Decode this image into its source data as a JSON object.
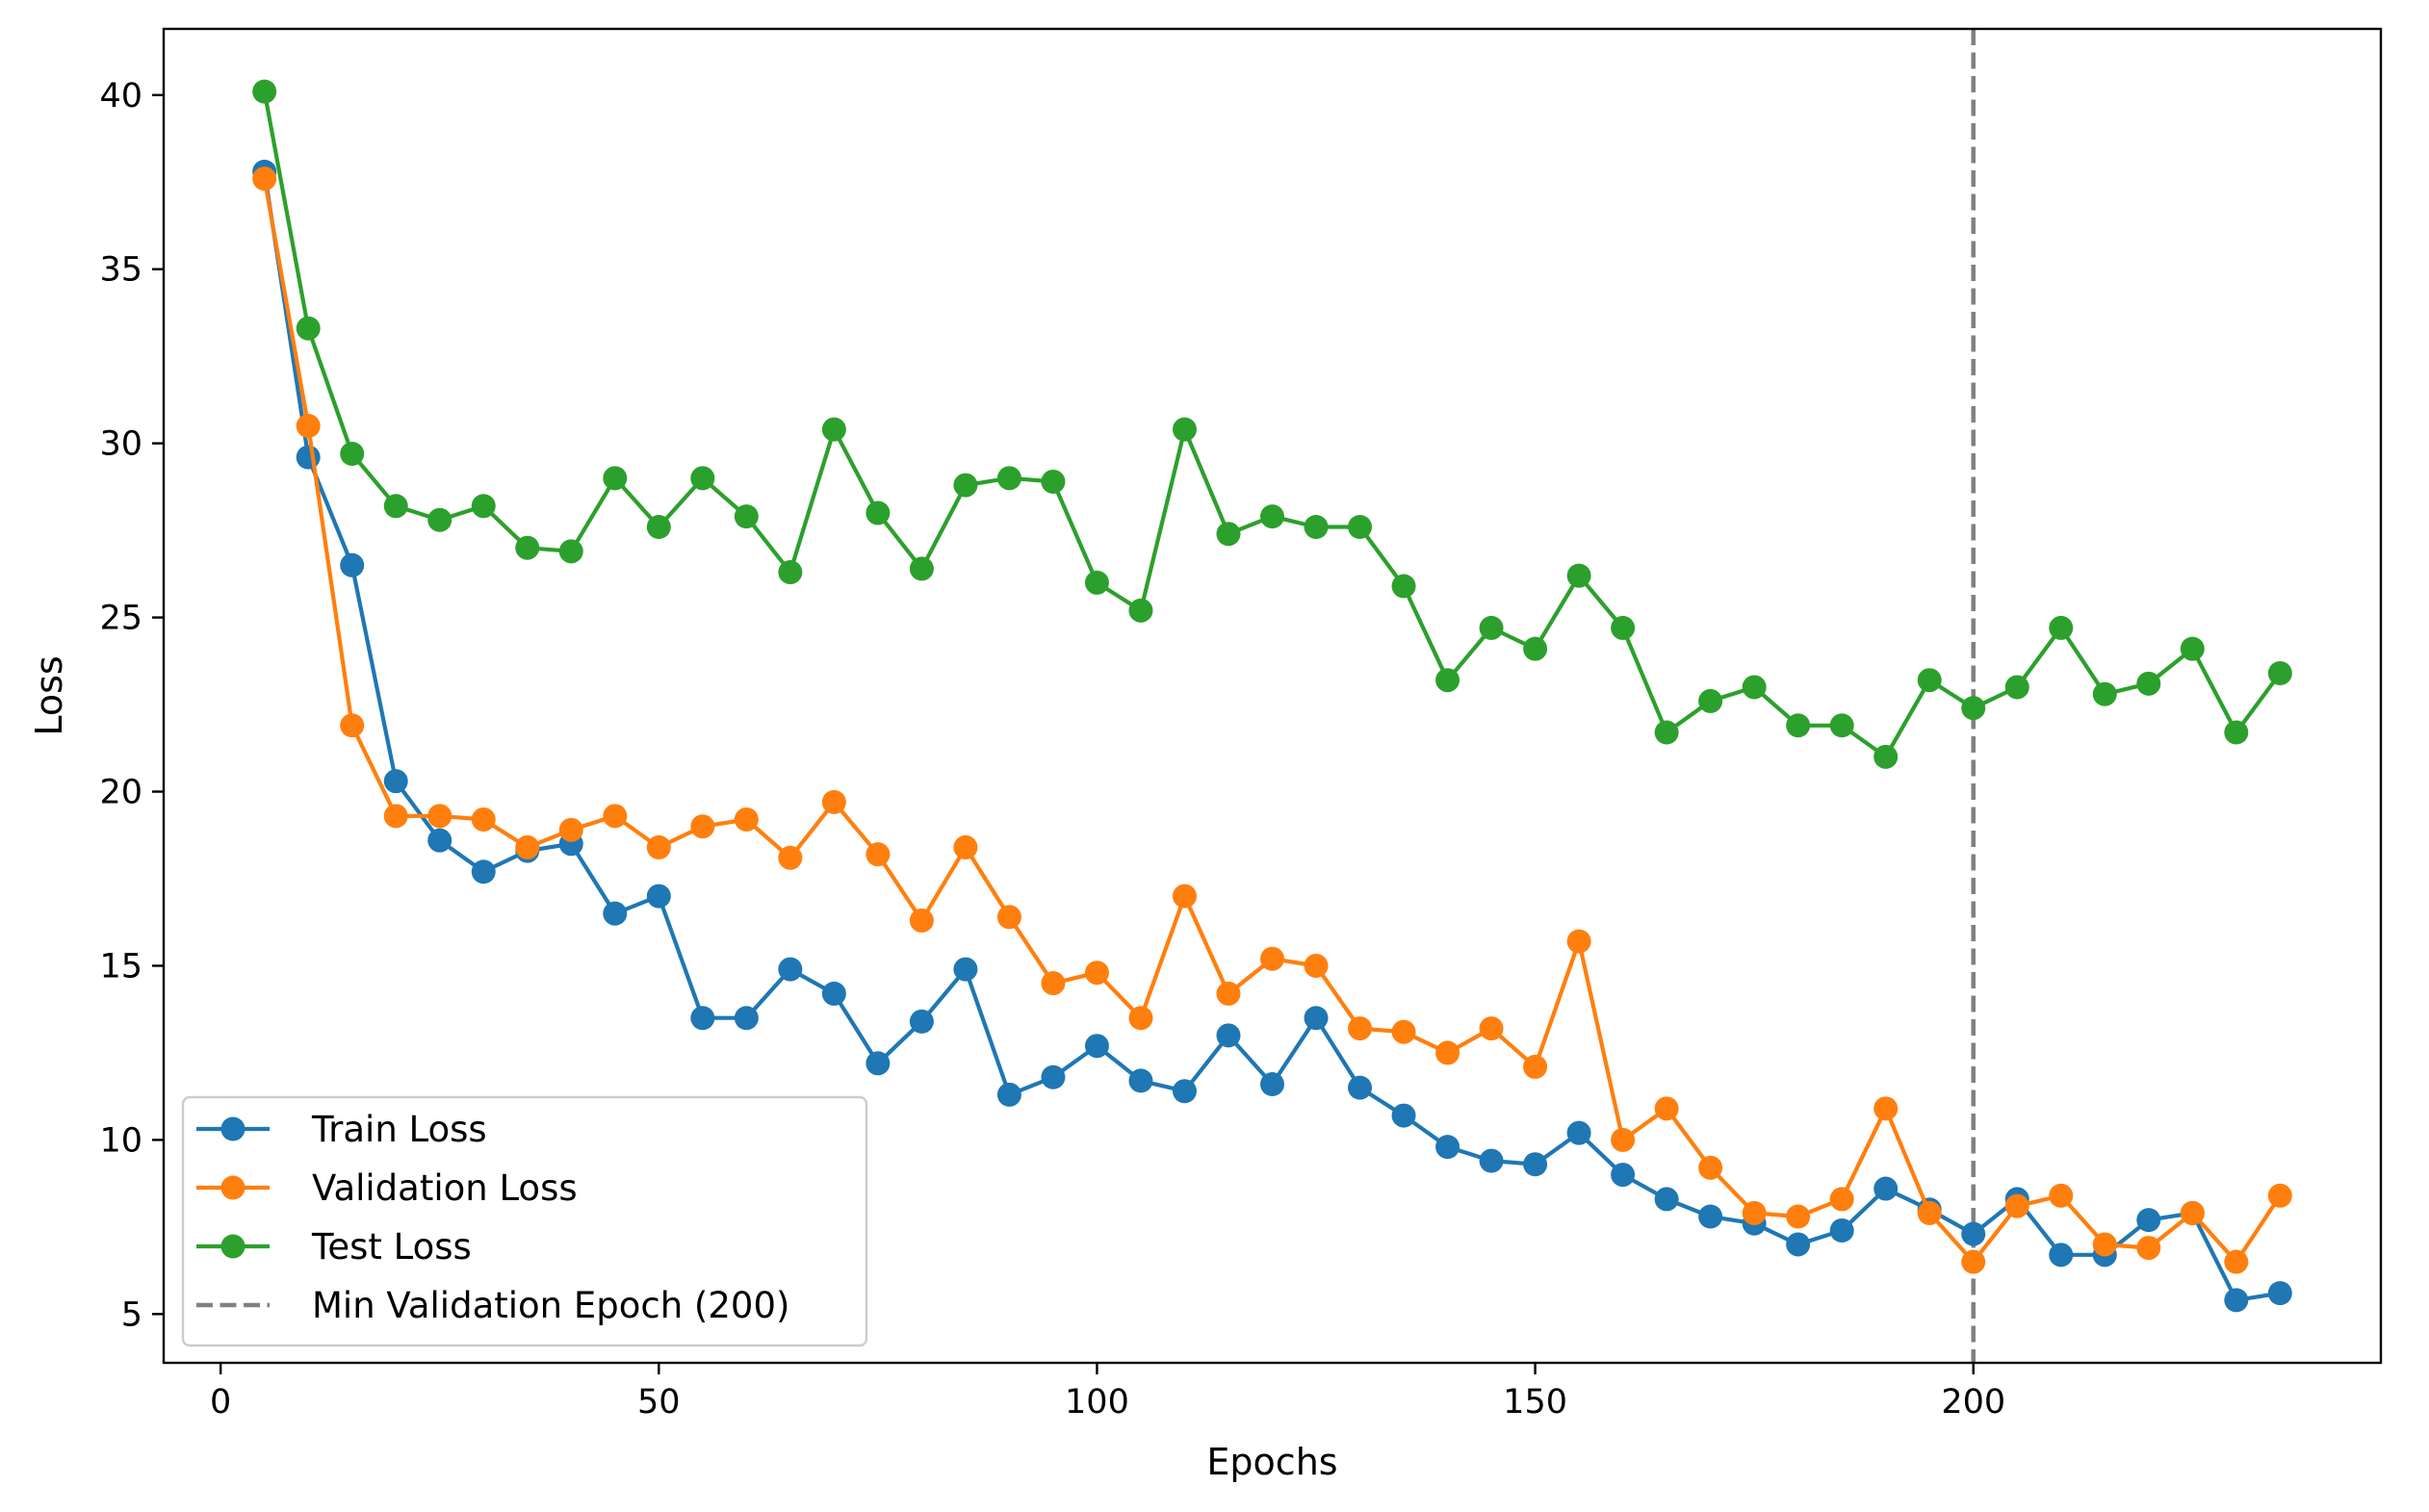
{
  "chart_data": {
    "type": "line",
    "title": "",
    "xlabel": "Epochs",
    "ylabel": "Loss",
    "xlim": [
      -6.5,
      246.5
    ],
    "ylim": [
      3.6,
      41.9
    ],
    "xticks": [
      0,
      50,
      100,
      150,
      200
    ],
    "yticks": [
      5,
      10,
      15,
      20,
      25,
      30,
      35,
      40
    ],
    "grid": false,
    "legend_position": "lower-left",
    "x": [
      5,
      10,
      15,
      20,
      25,
      30,
      35,
      40,
      45,
      50,
      55,
      60,
      65,
      70,
      75,
      80,
      85,
      90,
      95,
      100,
      105,
      110,
      115,
      120,
      125,
      130,
      135,
      140,
      145,
      150,
      155,
      160,
      165,
      170,
      175,
      180,
      185,
      190,
      195,
      200,
      205,
      210,
      215,
      220,
      225,
      230,
      235
    ],
    "series": [
      {
        "name": "Train Loss",
        "color": "#1f77b4",
        "values": [
          37.8,
          29.6,
          26.5,
          20.3,
          18.6,
          17.7,
          18.3,
          18.5,
          16.5,
          17.0,
          13.5,
          13.5,
          14.9,
          14.2,
          12.2,
          13.4,
          14.9,
          11.3,
          11.8,
          12.7,
          11.7,
          11.4,
          13.0,
          11.6,
          13.5,
          11.5,
          10.7,
          9.8,
          9.4,
          9.3,
          10.2,
          9.0,
          8.3,
          7.8,
          7.6,
          7.0,
          7.4,
          8.6,
          8.0,
          7.3,
          8.3,
          6.7,
          6.7,
          7.7,
          7.9,
          5.4,
          5.6
        ]
      },
      {
        "name": "Validation Loss",
        "color": "#ff7f0e",
        "values": [
          37.6,
          30.5,
          21.9,
          19.3,
          19.3,
          19.2,
          18.4,
          18.9,
          19.3,
          18.4,
          19.0,
          19.2,
          18.1,
          19.7,
          18.2,
          16.3,
          18.4,
          16.4,
          14.5,
          14.8,
          13.5,
          17.0,
          14.2,
          15.2,
          15.0,
          13.2,
          13.1,
          12.5,
          13.2,
          12.1,
          15.7,
          10.0,
          10.9,
          9.2,
          7.9,
          7.8,
          8.3,
          10.9,
          7.9,
          6.5,
          8.1,
          8.4,
          7.0,
          6.9,
          7.9,
          6.5,
          8.4
        ]
      },
      {
        "name": "Test Loss",
        "color": "#2ca02c",
        "values": [
          40.1,
          33.3,
          29.7,
          28.2,
          27.8,
          28.2,
          27.0,
          26.9,
          29.0,
          27.6,
          29.0,
          27.9,
          26.3,
          30.4,
          28.0,
          26.4,
          28.8,
          29.0,
          28.9,
          26.0,
          25.2,
          30.4,
          27.4,
          27.9,
          27.6,
          27.6,
          25.9,
          23.2,
          24.7,
          24.1,
          26.2,
          24.7,
          21.7,
          22.6,
          23.0,
          21.9,
          21.9,
          21.0,
          23.2,
          22.4,
          23.0,
          24.7,
          22.8,
          23.1,
          24.1,
          21.7,
          23.4
        ]
      }
    ],
    "vline": {
      "x": 200,
      "name": "Min Validation Epoch (200)",
      "color": "#808080",
      "style": "dashed"
    }
  }
}
